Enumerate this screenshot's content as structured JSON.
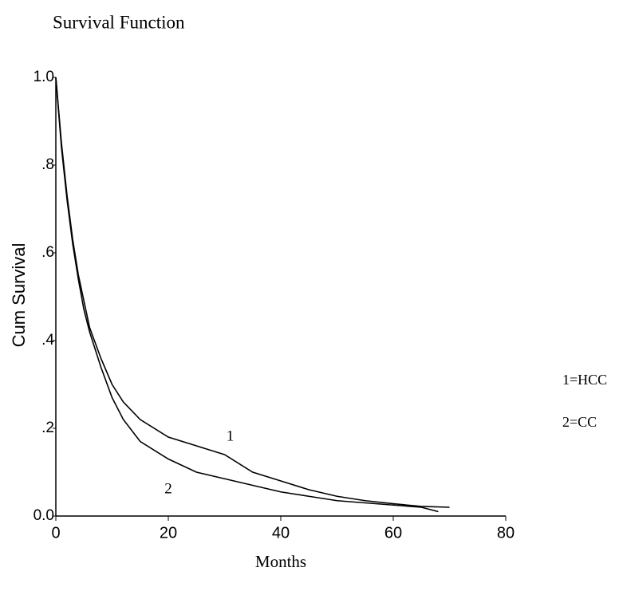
{
  "chart_data": {
    "type": "line",
    "title": "Survival Function",
    "xlabel": "Months",
    "ylabel": "Cum Survival",
    "xlim": [
      0,
      80
    ],
    "xticks": [
      0,
      20,
      40,
      60,
      80
    ],
    "ylim": [
      0,
      1
    ],
    "yticks": [
      {
        "value": 0,
        "label": "0.0"
      },
      {
        "value": 0.2,
        "label": ".2"
      },
      {
        "value": 0.4,
        "label": ".4"
      },
      {
        "value": 0.6,
        "label": ".6"
      },
      {
        "value": 0.8,
        "label": ".8"
      },
      {
        "value": 1,
        "label": "1.0"
      }
    ],
    "series": [
      {
        "name": "1=HCC",
        "color": "#000000",
        "x": [
          0,
          1,
          2,
          3,
          4,
          5,
          6,
          8,
          10,
          12,
          15,
          20,
          25,
          30,
          35,
          40,
          45,
          50,
          55,
          60,
          65,
          70
        ],
        "values": [
          1.0,
          0.85,
          0.73,
          0.63,
          0.55,
          0.49,
          0.43,
          0.36,
          0.3,
          0.26,
          0.22,
          0.18,
          0.16,
          0.14,
          0.1,
          0.08,
          0.06,
          0.045,
          0.035,
          0.028,
          0.022,
          0.02
        ]
      },
      {
        "name": "2=CC",
        "color": "#000000",
        "x": [
          0,
          1,
          2,
          3,
          4,
          5,
          6,
          8,
          10,
          12,
          15,
          20,
          25,
          30,
          35,
          40,
          45,
          50,
          55,
          60,
          65,
          68
        ],
        "values": [
          1.0,
          0.84,
          0.72,
          0.62,
          0.54,
          0.47,
          0.42,
          0.34,
          0.27,
          0.22,
          0.17,
          0.13,
          0.1,
          0.085,
          0.07,
          0.055,
          0.045,
          0.035,
          0.03,
          0.025,
          0.02,
          0.01
        ]
      }
    ],
    "annotations": [
      {
        "text": "1",
        "x": 31,
        "y": 0.18
      },
      {
        "text": "2",
        "x": 20,
        "y": 0.06
      }
    ]
  }
}
